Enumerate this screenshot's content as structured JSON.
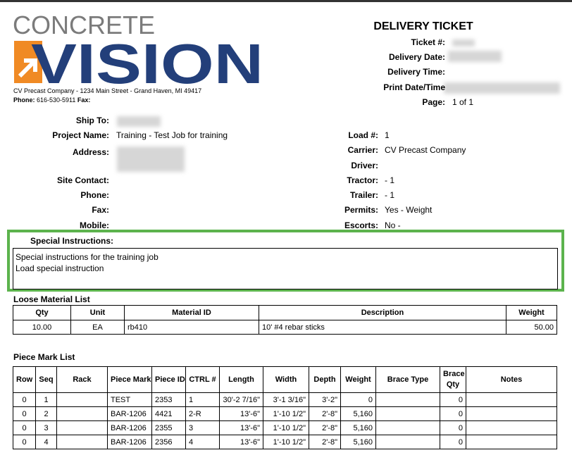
{
  "logo": {
    "top": "CONCRETE",
    "bottom": "VISION"
  },
  "company": {
    "address": "CV Precast Company - 1234 Main Street - Grand Haven, MI 49417",
    "phone_label": "Phone:",
    "phone": "616-530-5911",
    "fax_label": "Fax:"
  },
  "ticket": {
    "title": "DELIVERY TICKET",
    "fields": [
      {
        "label": "Ticket #:"
      },
      {
        "label": "Delivery Date:"
      },
      {
        "label": "Delivery Time:"
      },
      {
        "label": "Print Date/Time"
      },
      {
        "label": "Page:",
        "value": "1 of 1"
      }
    ]
  },
  "left_fields": [
    {
      "label": "Ship To:"
    },
    {
      "label": "Project Name:",
      "value": "Training - Test Job for training"
    },
    {
      "label": "Address:"
    },
    {
      "label": "Site Contact:"
    },
    {
      "label": "Phone:"
    },
    {
      "label": "Fax:"
    },
    {
      "label": "Mobile:"
    }
  ],
  "right_fields": [
    {
      "label": "Load #:",
      "value": "1"
    },
    {
      "label": "Carrier:",
      "value": "CV Precast Company"
    },
    {
      "label": "Driver:"
    },
    {
      "label": "Tractor:",
      "value": "- 1"
    },
    {
      "label": "Trailer:",
      "value": "- 1"
    },
    {
      "label": "Permits:",
      "value": "Yes - Weight"
    },
    {
      "label": "Escorts:",
      "value": "No -"
    }
  ],
  "special_instructions": {
    "label": "Special Instructions:",
    "lines": [
      "Special instructions for the training job",
      "Load special instruction"
    ]
  },
  "loose_material": {
    "title": "Loose Material List",
    "columns": [
      "Qty",
      "Unit",
      "Material ID",
      "Description",
      "Weight"
    ],
    "rows": [
      [
        "10.00",
        "EA",
        "rb410",
        "10' #4 rebar sticks",
        "50.00"
      ]
    ]
  },
  "piece_marks": {
    "title": "Piece Mark List",
    "columns": [
      "Row",
      "Seq",
      "Rack",
      "Piece Mark",
      "Piece ID",
      "CTRL #",
      "Length",
      "Width",
      "Depth",
      "Weight",
      "Brace Type",
      "Brace Qty",
      "Notes"
    ],
    "rows": [
      [
        "0",
        "1",
        null,
        "TEST",
        "2353",
        "1",
        "30'-2 7/16\"",
        "3'-1 3/16\"",
        "3'-2\"",
        "0",
        null,
        "0",
        null
      ],
      [
        "0",
        "2",
        null,
        "BAR-1206",
        "4421",
        "2-R",
        "13'-6\"",
        "1'-10 1/2\"",
        "2'-8\"",
        "5,160",
        null,
        "0",
        null
      ],
      [
        "0",
        "3",
        null,
        "BAR-1206",
        "2355",
        "3",
        "13'-6\"",
        "1'-10 1/2\"",
        "2'-8\"",
        "5,160",
        null,
        "0",
        null
      ],
      [
        "0",
        "4",
        null,
        "BAR-1206",
        "2356",
        "4",
        "13'-6\"",
        "1'-10 1/2\"",
        "2'-8\"",
        "5,160",
        null,
        "0",
        null
      ]
    ]
  }
}
